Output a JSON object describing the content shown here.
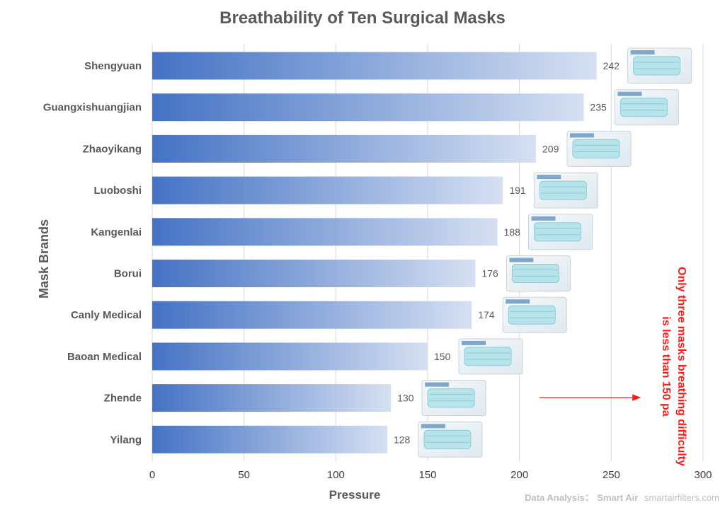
{
  "chart_data": {
    "type": "bar",
    "orientation": "horizontal",
    "title": "Breathability of Ten Surgical Masks",
    "xlabel": "Pressure",
    "ylabel": "Mask Brands",
    "xlim": [
      0,
      300
    ],
    "xticks": [
      0,
      50,
      100,
      150,
      200,
      250,
      300
    ],
    "grid": "vertical",
    "categories": [
      "Shengyuan",
      "Guangxishuangjian",
      "Zhaoyikang",
      "Luoboshi",
      "Kangenlai",
      "Borui",
      "Canly Medical",
      "Baoan Medical",
      "Zhende",
      "Yilang"
    ],
    "values": [
      242,
      235,
      209,
      191,
      188,
      176,
      174,
      150,
      130,
      128
    ],
    "bar_gradient": [
      "#4472c4",
      "#d6e0f2"
    ],
    "annotation": {
      "lines": [
        "Only three masks breathing difficulty",
        "is less than 150 pa"
      ],
      "color": "#ff1a1a"
    },
    "credit": {
      "prefix": "Data Analysis：",
      "name": "Smart Air",
      "site": "smartairfilters.com"
    }
  }
}
